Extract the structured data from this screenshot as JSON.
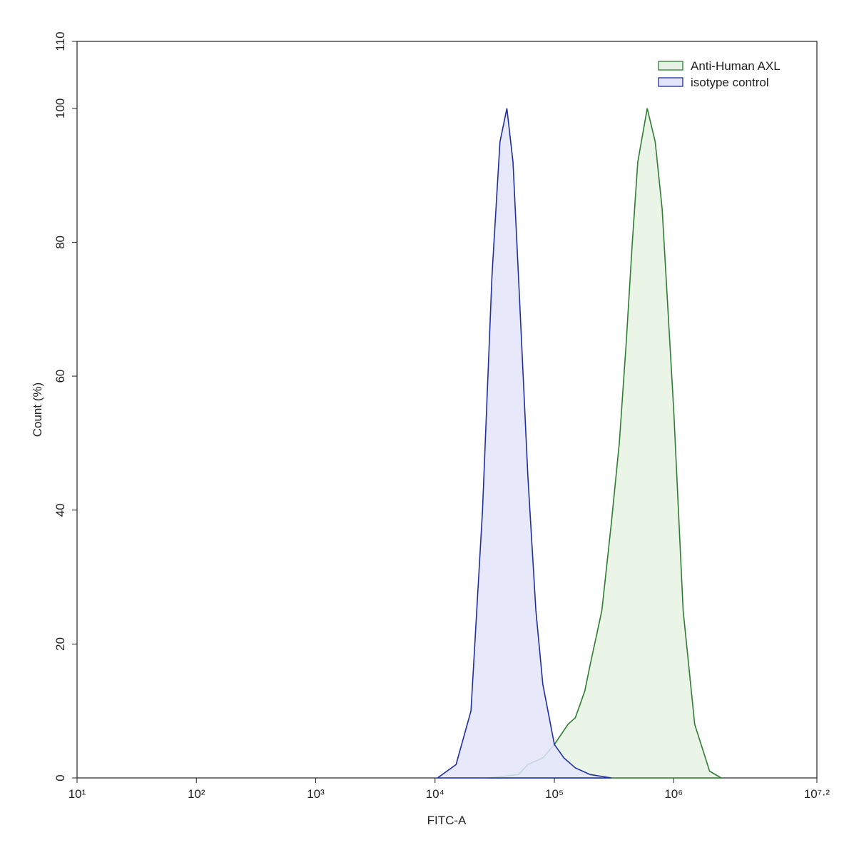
{
  "chart_data": {
    "type": "histogram-overlay",
    "x_label": "FITC-A",
    "y_label": "Count  (%)",
    "xscale": "log",
    "xlim": [
      10,
      15848932
    ],
    "xticks": [
      {
        "value": 10,
        "label": "10¹"
      },
      {
        "value": 100,
        "label": "10²"
      },
      {
        "value": 1000,
        "label": "10³"
      },
      {
        "value": 10000,
        "label": "10⁴"
      },
      {
        "value": 100000,
        "label": "10⁵"
      },
      {
        "value": 1000000,
        "label": "10⁶"
      },
      {
        "value": 15848932,
        "label": "10⁷·²"
      }
    ],
    "ylim": [
      0,
      110
    ],
    "yticks": [
      0,
      20,
      40,
      60,
      80,
      100,
      110
    ],
    "grid": false,
    "legend": "top-right",
    "series": [
      {
        "name": "Anti-Human AXL",
        "color": "#2e7d32",
        "fill": "#e6f3e4",
        "x": [
          28000,
          50000,
          60000,
          80000,
          100000,
          130000,
          150000,
          180000,
          200000,
          250000,
          300000,
          350000,
          400000,
          450000,
          500000,
          600000,
          700000,
          800000,
          1000000,
          1200000,
          1500000,
          2000000,
          2500000
        ],
        "values": [
          0,
          0.5,
          2,
          3,
          5,
          8,
          9,
          13,
          17,
          25,
          38,
          50,
          65,
          80,
          92,
          100,
          95,
          85,
          55,
          25,
          8,
          1,
          0
        ]
      },
      {
        "name": "isotype control",
        "color": "#1f2fa0",
        "fill": "#e3e5fa",
        "x": [
          10500,
          15000,
          20000,
          25000,
          30000,
          35000,
          40000,
          45000,
          50000,
          60000,
          70000,
          80000,
          100000,
          120000,
          150000,
          200000,
          300000
        ],
        "values": [
          0,
          2,
          10,
          40,
          75,
          95,
          100,
          92,
          75,
          45,
          25,
          14,
          5,
          3,
          1.5,
          0.5,
          0
        ]
      }
    ]
  }
}
